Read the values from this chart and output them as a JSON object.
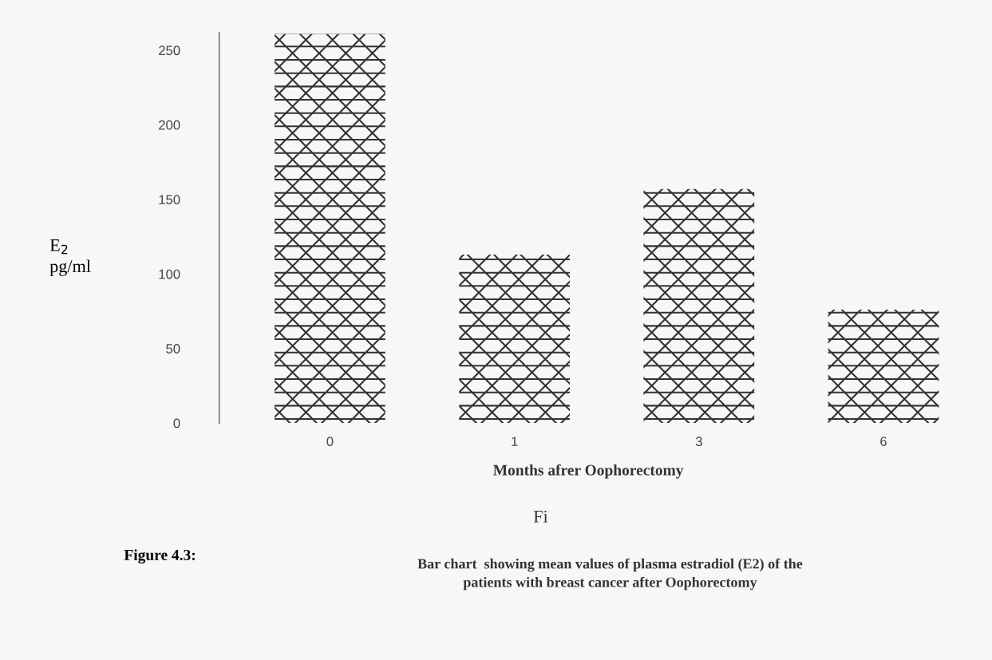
{
  "chart_data": {
    "type": "bar",
    "title": "Figure 4.3:",
    "subtitle": "Bar chart  showing mean values of plasma estradiol (E2) of the\npatients with breast cancer after Oophorectomy",
    "xlabel": "Months afrer Oophorectomy",
    "ylabel": "E$_{2}$\npg/ml",
    "categories": [
      "0",
      "1",
      "3",
      "6"
    ],
    "values": [
      261,
      113,
      157,
      76
    ],
    "color": "#333333",
    "ylim": [
      0,
      262
    ],
    "yticks": [
      0,
      50,
      100,
      150,
      200,
      250
    ],
    "grid": false,
    "legend": false,
    "annotations": [
      "Fi"
    ]
  }
}
